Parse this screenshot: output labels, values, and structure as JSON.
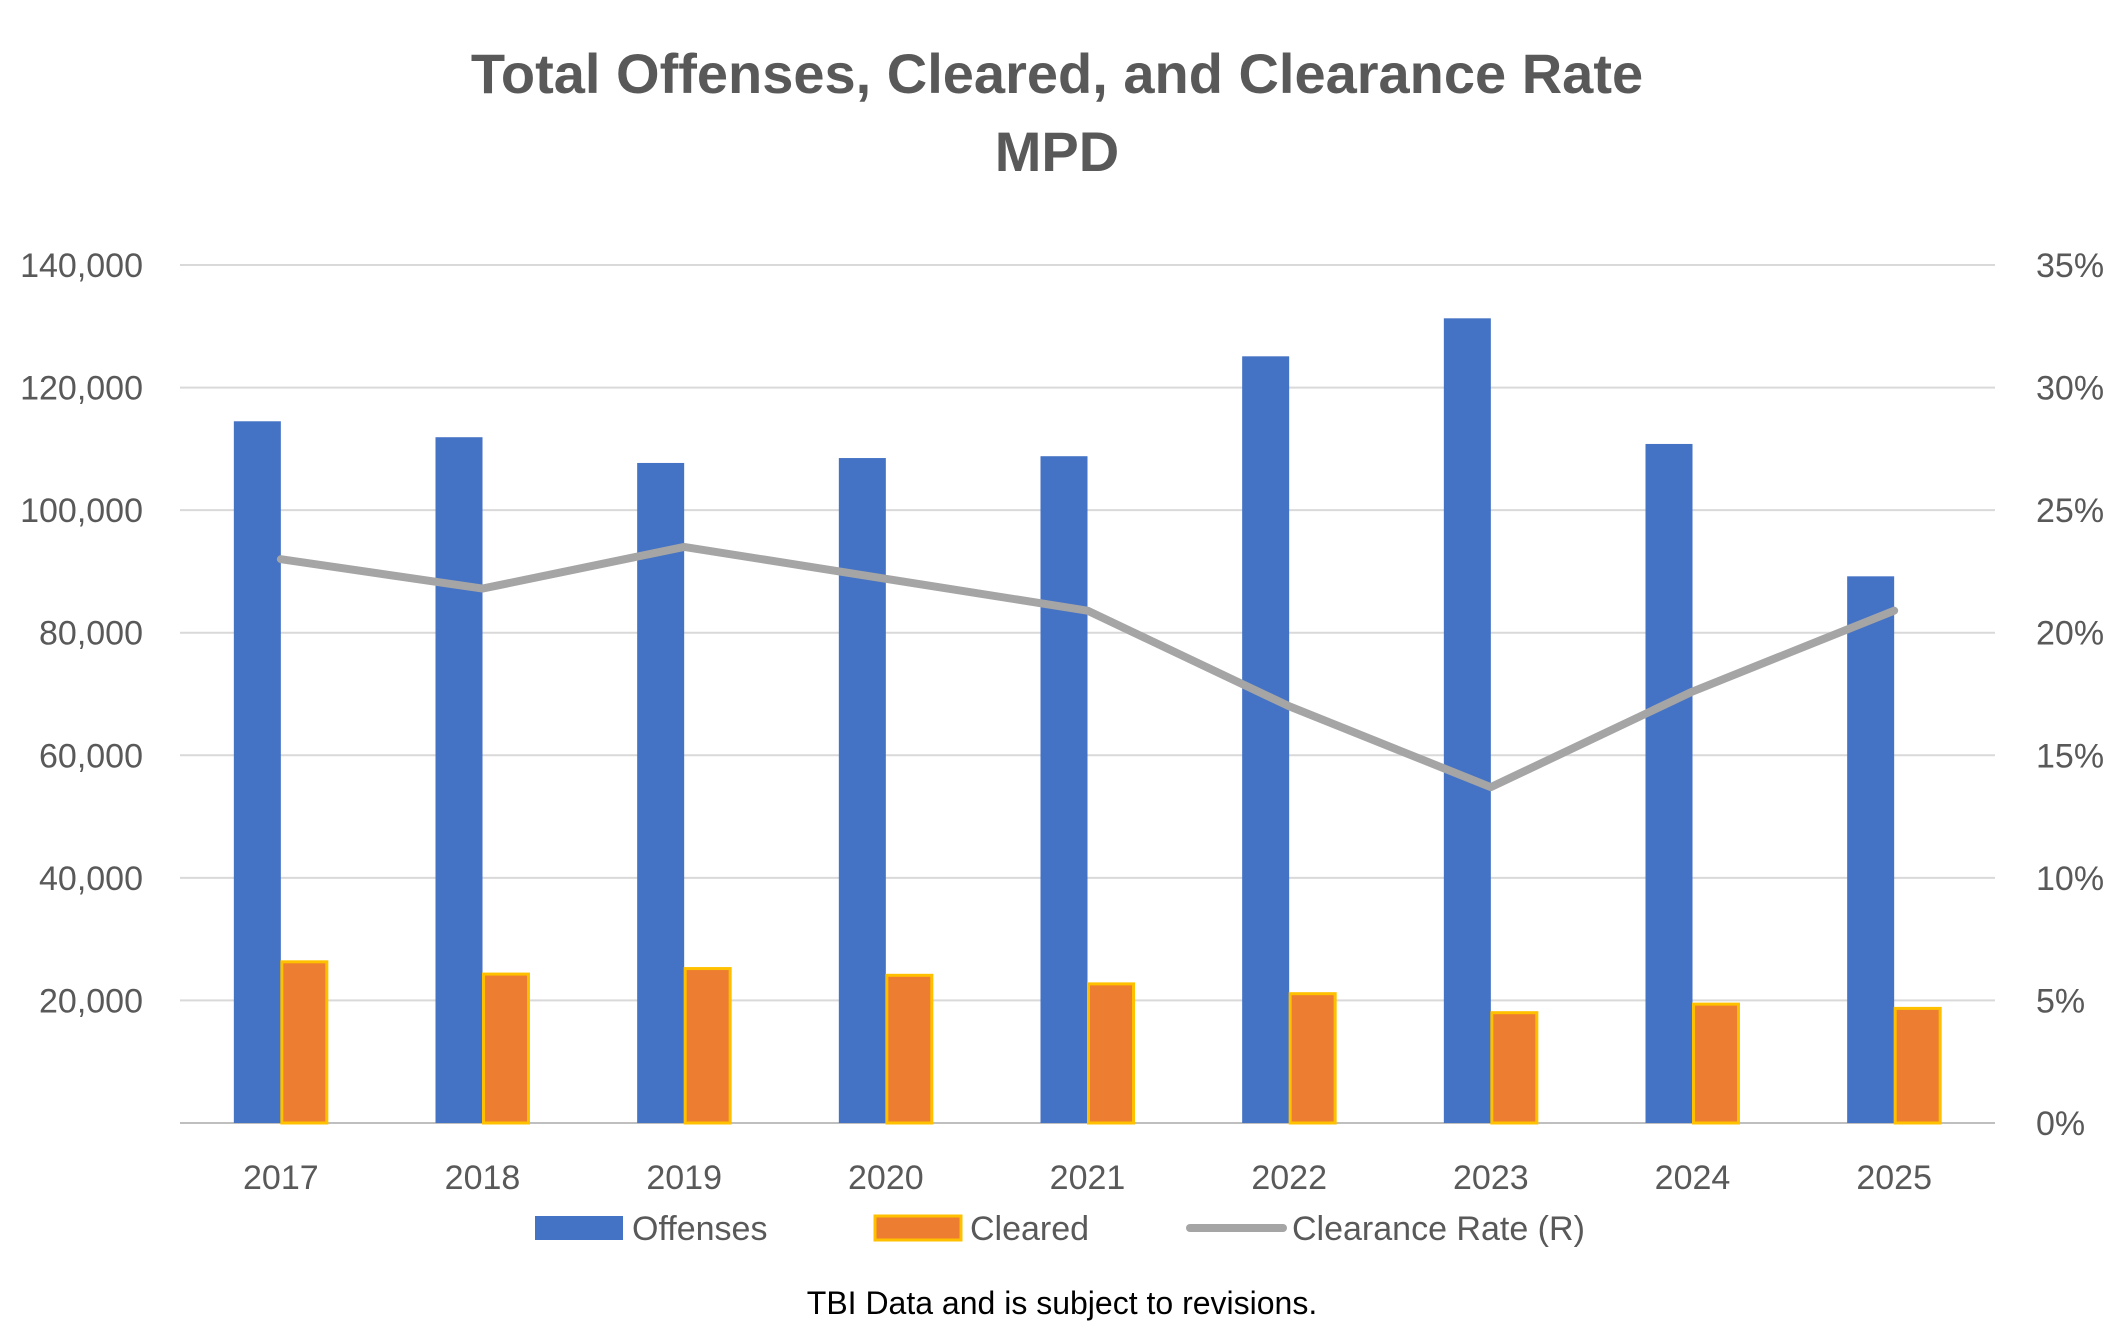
{
  "chart_data": {
    "type": "bar",
    "title": "Total Offenses, Cleared, and Clearance Rate",
    "subtitle": "MPD",
    "categories": [
      "2017",
      "2018",
      "2019",
      "2020",
      "2021",
      "2022",
      "2023",
      "2024",
      "2025"
    ],
    "series": [
      {
        "name": "Offenses",
        "type": "bar",
        "axis": "left",
        "color": "#4472C4",
        "values": [
          114500,
          111900,
          107700,
          108500,
          108800,
          125100,
          131300,
          110800,
          89200
        ]
      },
      {
        "name": "Cleared",
        "type": "bar",
        "axis": "left",
        "color": "#ED7D31",
        "border_color": "#FFC000",
        "values": [
          26300,
          24300,
          25200,
          24100,
          22700,
          21100,
          18000,
          19400,
          18700
        ]
      },
      {
        "name": "Clearance Rate (R)",
        "type": "line",
        "axis": "right",
        "color": "#A5A5A5",
        "values": [
          23.0,
          21.8,
          23.5,
          22.2,
          20.9,
          17.0,
          13.7,
          17.6,
          20.9
        ]
      }
    ],
    "y_left": {
      "ylim": [
        0,
        140000
      ],
      "ticks": [
        0,
        20000,
        40000,
        60000,
        80000,
        100000,
        120000,
        140000
      ],
      "tick_labels": [
        "",
        "20,000",
        "40,000",
        "60,000",
        "80,000",
        "100,000",
        "120,000",
        "140,000"
      ]
    },
    "y_right": {
      "ylim": [
        0,
        35
      ],
      "ticks": [
        0,
        5,
        10,
        15,
        20,
        25,
        30,
        35
      ],
      "tick_labels": [
        "0%",
        "5%",
        "10%",
        "15%",
        "20%",
        "25%",
        "30%",
        "35%"
      ]
    },
    "grid": true,
    "legend_position": "bottom",
    "xlabel": "",
    "ylabel": ""
  },
  "footnote": "TBI Data and is subject to revisions."
}
